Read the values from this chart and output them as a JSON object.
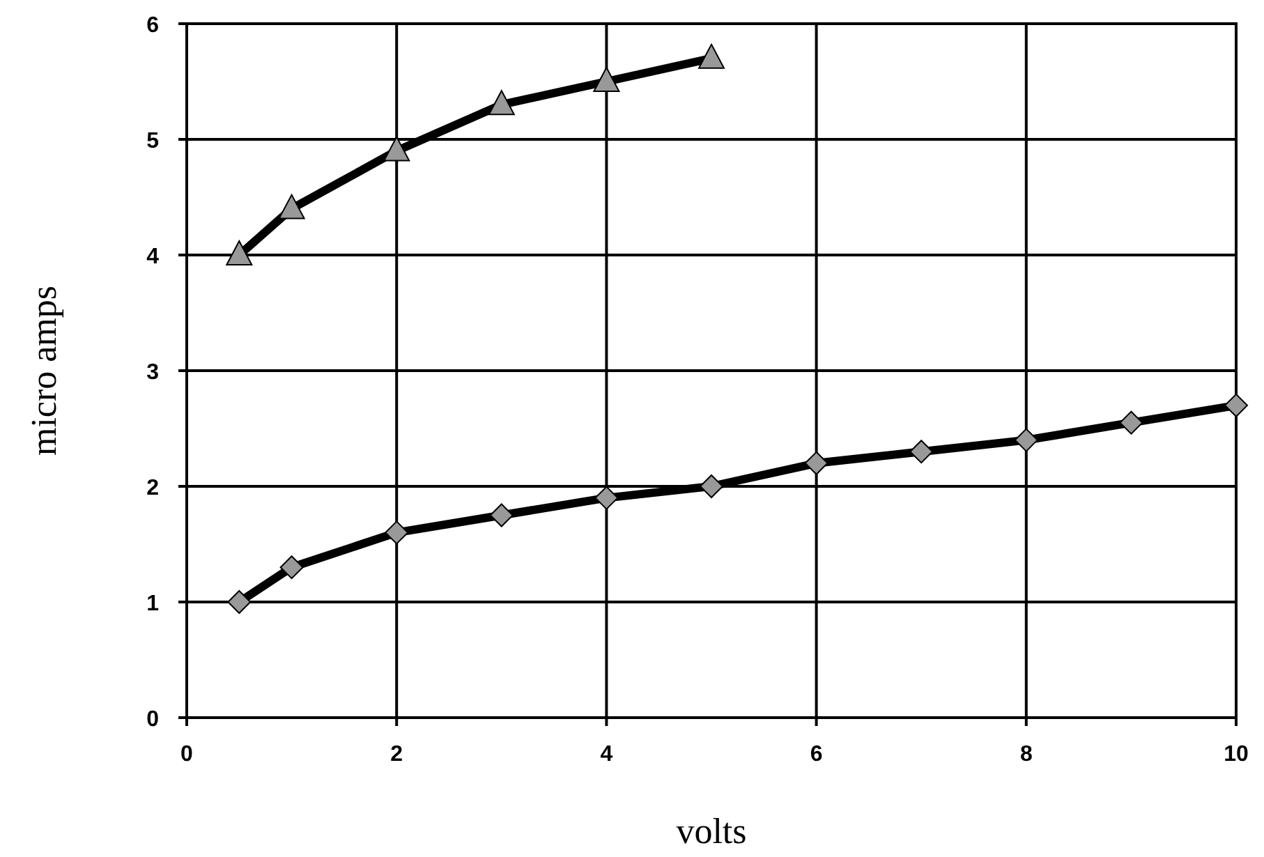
{
  "chart_data": {
    "type": "line",
    "xlabel": "volts",
    "ylabel": "micro amps",
    "xlim": [
      0,
      10
    ],
    "ylim": [
      0,
      6
    ],
    "xticks": [
      0,
      2,
      4,
      6,
      8,
      10
    ],
    "yticks": [
      0,
      1,
      2,
      3,
      4,
      5,
      6
    ],
    "grid": true,
    "line_style": "solid",
    "series": [
      {
        "color": "#000000",
        "marker": "triangle",
        "x": [
          0.5,
          1,
          2,
          3,
          4,
          5
        ],
        "values": [
          4.0,
          4.4,
          4.9,
          5.3,
          5.5,
          5.7
        ]
      },
      {
        "color": "#000000",
        "marker": "diamond",
        "x": [
          0.5,
          1,
          2,
          3,
          4,
          5,
          6,
          7,
          8,
          9,
          10
        ],
        "values": [
          1.0,
          1.3,
          1.6,
          1.75,
          1.9,
          2.0,
          2.2,
          2.3,
          2.4,
          2.55,
          2.7
        ]
      }
    ]
  }
}
